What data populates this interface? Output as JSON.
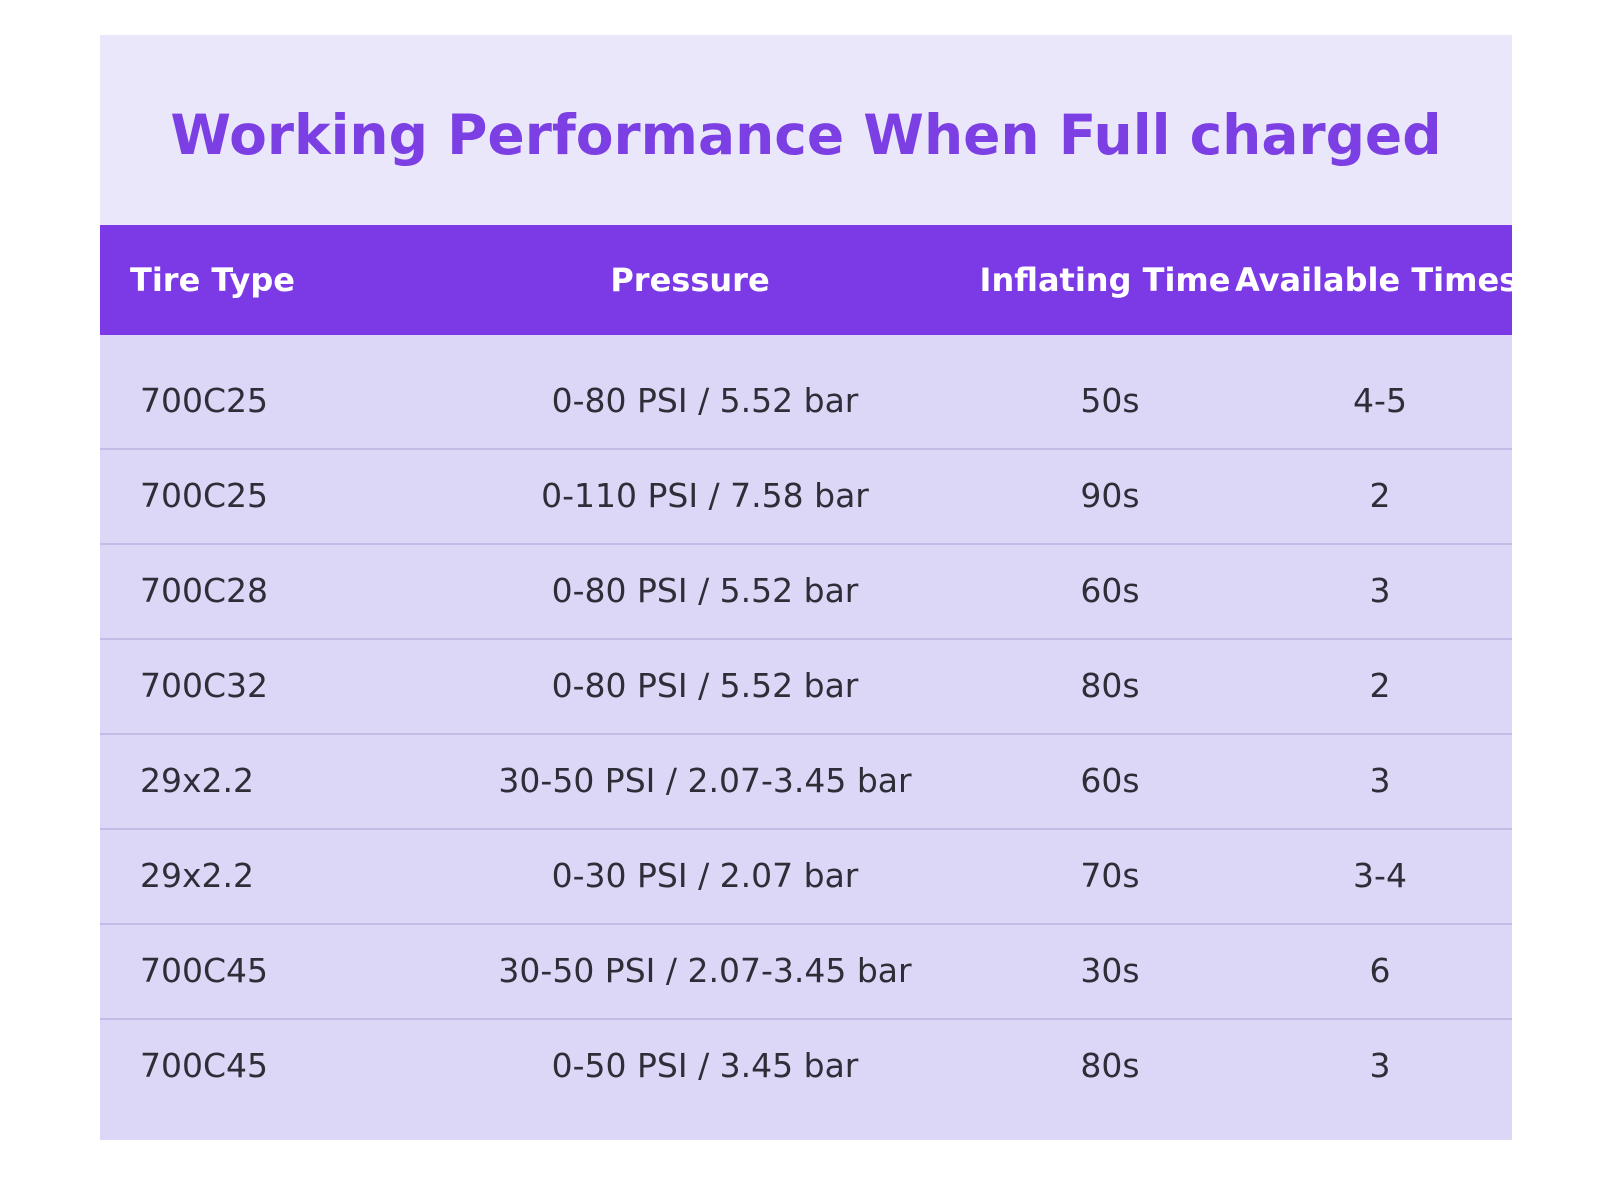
{
  "title": "Working Performance When Full charged",
  "colors": {
    "title_text": "#7b3fe4",
    "header_background": "#7c3ae6",
    "header_text": "#ffffff",
    "title_band_background": "#ebe7fa",
    "body_background": "#dcd6f7",
    "row_divider": "#c4bce6"
  },
  "table": {
    "headers": [
      "Tire Type",
      "Pressure",
      "Inflating Time",
      "Available Times"
    ],
    "rows": [
      [
        "700C25",
        "0-80 PSI / 5.52 bar",
        "50s",
        "4-5"
      ],
      [
        "700C25",
        "0-110 PSI / 7.58 bar",
        "90s",
        "2"
      ],
      [
        "700C28",
        "0-80 PSI / 5.52 bar",
        "60s",
        "3"
      ],
      [
        "700C32",
        "0-80 PSI / 5.52 bar",
        "80s",
        "2"
      ],
      [
        "29x2.2",
        "30-50 PSI / 2.07-3.45 bar",
        "60s",
        "3"
      ],
      [
        "29x2.2",
        "0-30 PSI / 2.07 bar",
        "70s",
        "3-4"
      ],
      [
        "700C45",
        "30-50 PSI / 2.07-3.45 bar",
        "30s",
        "6"
      ],
      [
        "700C45",
        "0-50 PSI / 3.45 bar",
        "80s",
        "3"
      ]
    ]
  }
}
